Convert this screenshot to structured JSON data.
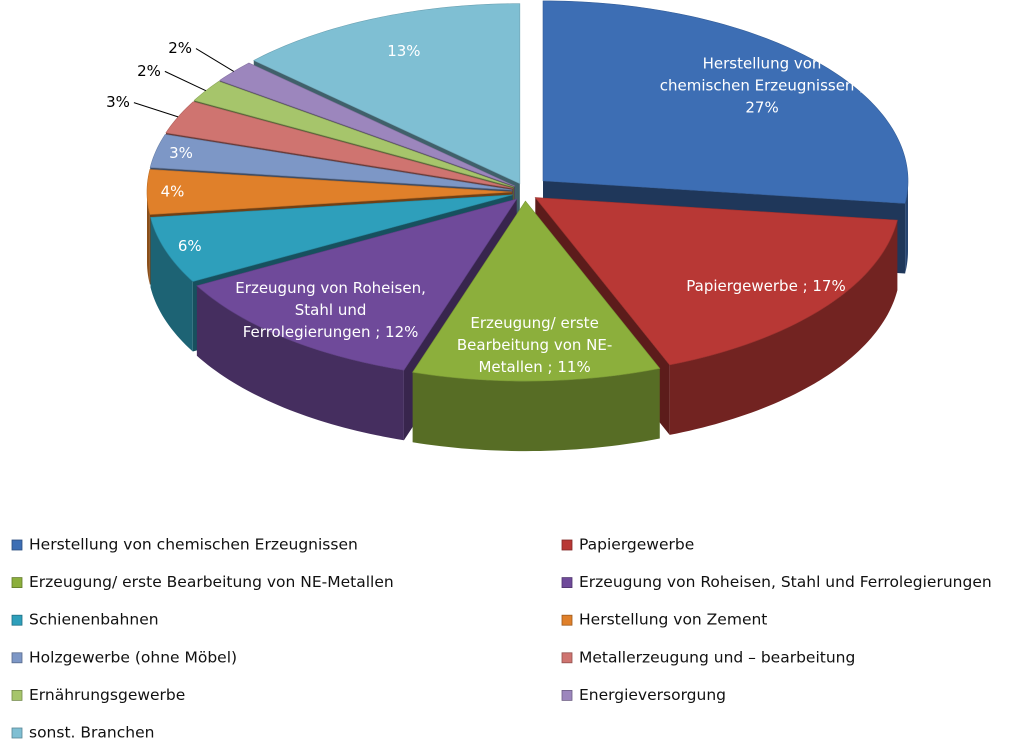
{
  "chart_data": {
    "type": "pie",
    "categories": [
      "Herstellung von chemischen Erzeugnissen",
      "Papiergewerbe",
      "Erzeugung/ erste Bearbeitung von NE-Metallen",
      "Erzeugung von Roheisen, Stahl und Ferrolegierungen",
      "Schienenbahnen",
      "Herstellung von Zement",
      "Holzgewerbe (ohne Möbel)",
      "Metallerzeugung und – bearbeitung",
      "Ernährungsgewerbe",
      "Energieversorgung",
      "sonst. Branchen"
    ],
    "values": [
      27,
      17,
      11,
      12,
      6,
      4,
      3,
      3,
      2,
      2,
      13
    ],
    "value_labels": [
      "Herstellung von chemischen Erzeugnissen ; 27%",
      "Papiergewerbe ; 17%",
      "Erzeugung/ erste Bearbeitung von NE-Metallen ; 11%",
      "Erzeugung von Roheisen, Stahl und Ferrolegierungen ; 12%",
      "6%",
      "4%",
      "3%",
      "3%",
      "2%",
      "2%",
      "13%"
    ],
    "colors": [
      "#3d6eb4",
      "#b83835",
      "#8caf3c",
      "#6f4a9a",
      "#2e9fbb",
      "#e0802a",
      "#7d97c6",
      "#cf7470",
      "#a6c56b",
      "#9c86bd",
      "#7fbfd3"
    ],
    "legend": "bottom"
  }
}
